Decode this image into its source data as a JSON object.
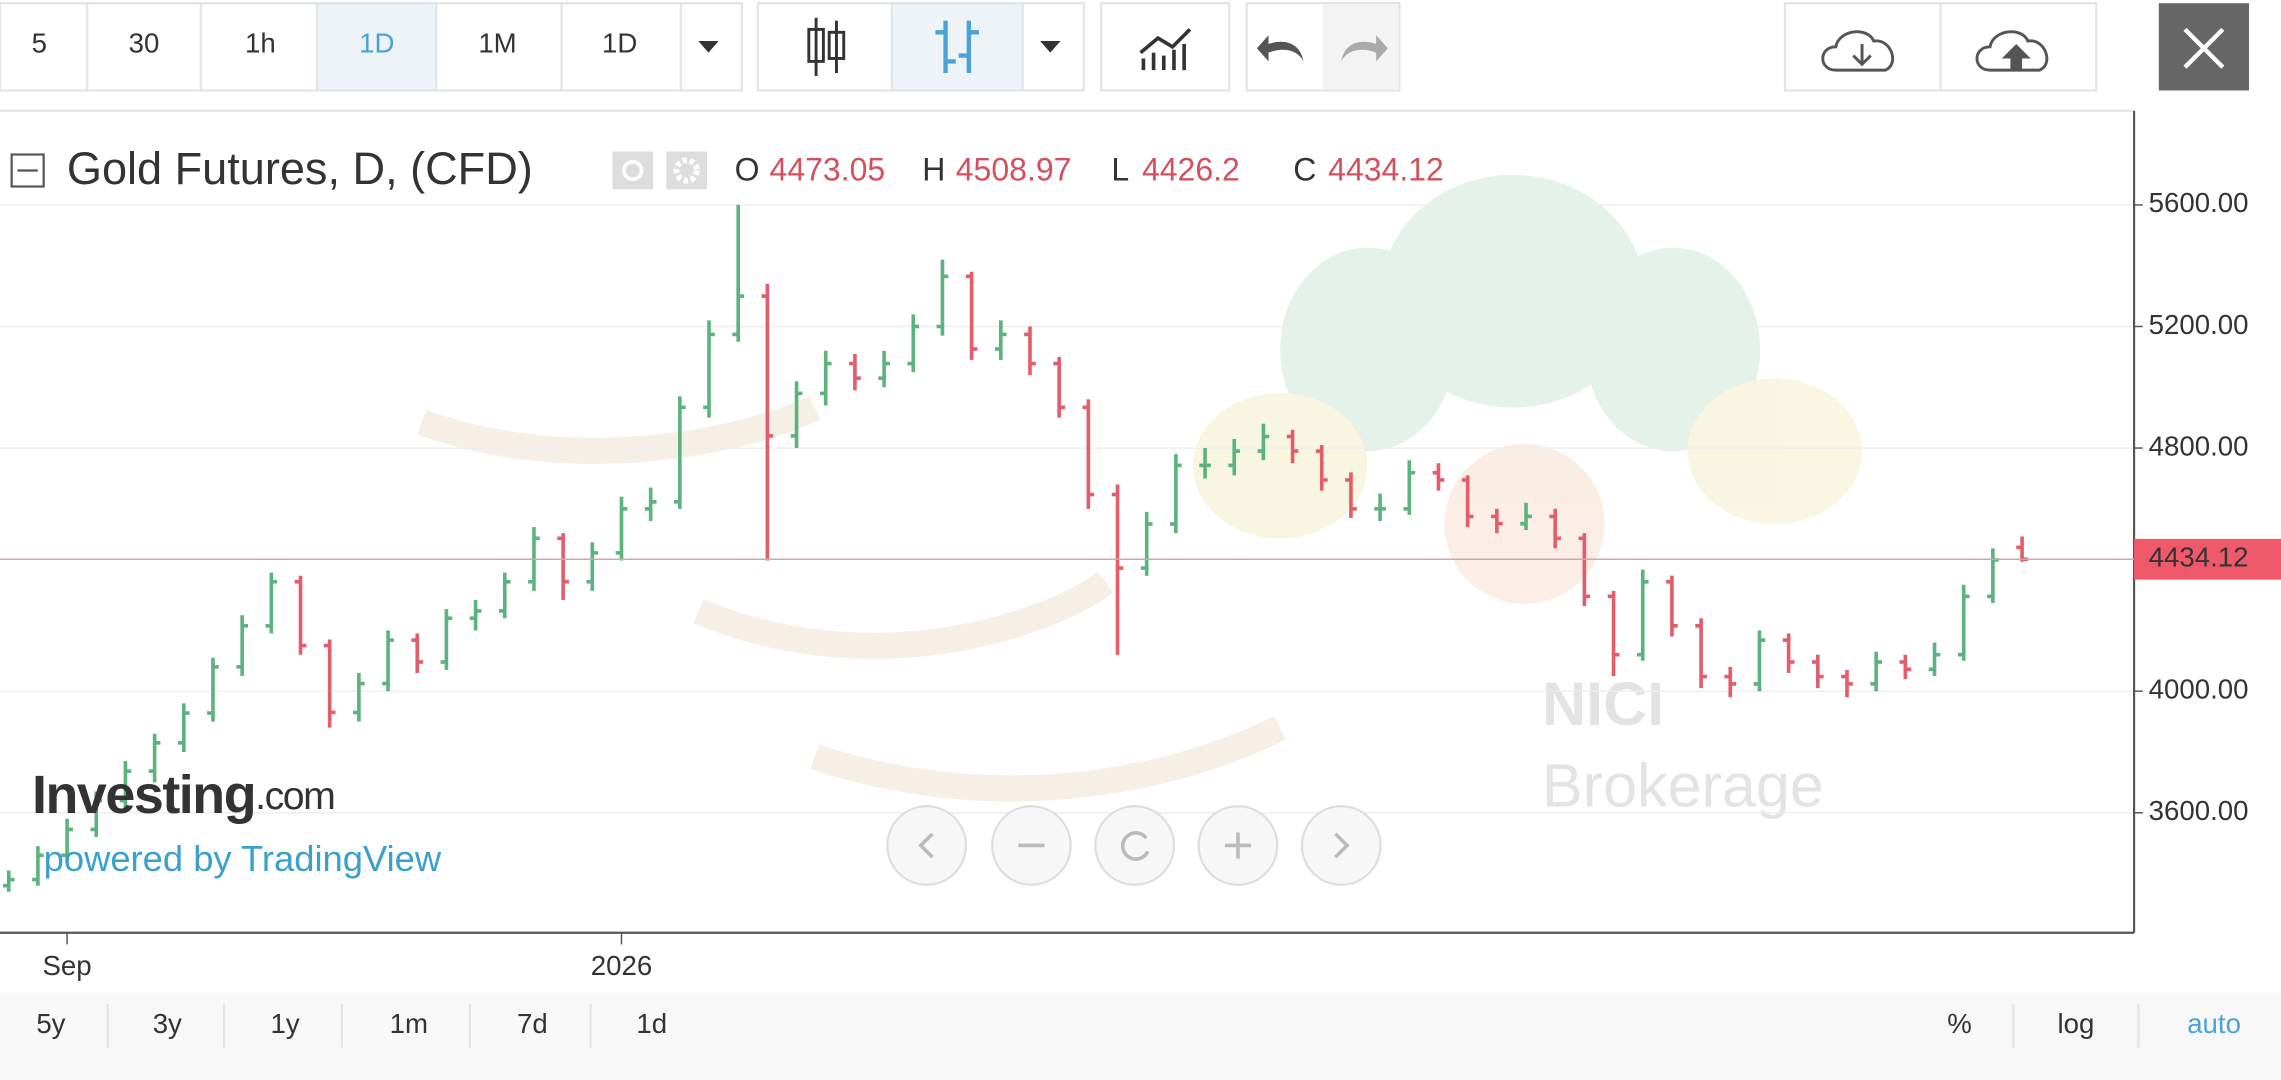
{
  "toolbar": {
    "intervals": [
      "5",
      "30",
      "1h",
      "1D",
      "1M",
      "1D"
    ]
  },
  "legend_labels": [
    "O",
    "H",
    "L",
    "C"
  ],
  "logo": {
    "brand": "Investing",
    "suffix": ".com",
    "powered": "powered by TradingView"
  },
  "watermark": [
    "NICI",
    "Brokerage"
  ],
  "footer": {
    "ranges": [
      "5y",
      "3y",
      "1y",
      "1m",
      "7d",
      "1d"
    ],
    "options": [
      "%",
      "log",
      "auto"
    ]
  },
  "chart_data": {
    "type": "ohlc",
    "title": "Gold Futures, D, (CFD)",
    "categories": [
      null,
      null,
      "Sep",
      null,
      null,
      null,
      null,
      null,
      null,
      null,
      null,
      null,
      null,
      null,
      null,
      null,
      null,
      null,
      null,
      null,
      null,
      "2026",
      null,
      null,
      null,
      null,
      null,
      null,
      null,
      null,
      null,
      null,
      null,
      null,
      null,
      null,
      null,
      null,
      null,
      null,
      null,
      null,
      null,
      null,
      null,
      null,
      null,
      null,
      null,
      null,
      null,
      null,
      null,
      null,
      null,
      null,
      null,
      null,
      null,
      null,
      null,
      null,
      null,
      null,
      null,
      null,
      null,
      null,
      null,
      null
    ],
    "series": [
      {
        "name": "Gold Futures",
        "up_color": "#5db37e",
        "down_color": "#e35d6a",
        "open": [
          3360,
          3380,
          3460,
          3545,
          3640,
          3737,
          3830,
          3928,
          4080,
          4215,
          4360,
          4150,
          3930,
          4025,
          4168,
          4096,
          4240,
          4264,
          4360,
          4503,
          4360,
          4455,
          4600,
          4623,
          4934,
          5174,
          5300,
          4840,
          4980,
          5078,
          5030,
          5078,
          5200,
          5365,
          5126,
          5174,
          5078,
          4934,
          4647,
          4405,
          4550,
          4743,
          4743,
          4790,
          4838,
          4790,
          4695,
          4600,
          4600,
          4719,
          4695,
          4575,
          4551,
          4575,
          4503,
          4312,
          4120,
          4360,
          4215,
          4048,
          4024,
          4168,
          4096,
          4048,
          4024,
          4096,
          4072,
          4120,
          4312,
          4473.05
        ],
        "high": [
          3410,
          3490,
          3580,
          3670,
          3770,
          3860,
          3960,
          4110,
          4250,
          4390,
          4380,
          4170,
          4060,
          4200,
          4190,
          4270,
          4300,
          4390,
          4540,
          4520,
          4490,
          4640,
          4670,
          4970,
          5220,
          5600,
          5340,
          5020,
          5120,
          5110,
          5120,
          5240,
          5420,
          5380,
          5220,
          5200,
          5100,
          4960,
          4680,
          4590,
          4780,
          4800,
          4830,
          4880,
          4860,
          4810,
          4720,
          4650,
          4760,
          4750,
          4710,
          4600,
          4620,
          4600,
          4520,
          4330,
          4400,
          4380,
          4240,
          4080,
          4200,
          4190,
          4120,
          4070,
          4130,
          4120,
          4160,
          4350,
          4470,
          4508.97
        ],
        "low": [
          3340,
          3360,
          3440,
          3520,
          3610,
          3700,
          3800,
          3900,
          4050,
          4190,
          4120,
          3880,
          3900,
          4000,
          4060,
          4070,
          4200,
          4240,
          4330,
          4300,
          4330,
          4430,
          4560,
          4600,
          4900,
          5150,
          4430,
          4800,
          4940,
          4990,
          5000,
          5050,
          5170,
          5090,
          5090,
          5040,
          4900,
          4600,
          4120,
          4380,
          4520,
          4700,
          4710,
          4760,
          4750,
          4660,
          4570,
          4560,
          4580,
          4660,
          4540,
          4520,
          4530,
          4470,
          4280,
          4050,
          4100,
          4180,
          4010,
          3980,
          4000,
          4060,
          4010,
          3980,
          4000,
          4040,
          4050,
          4100,
          4290,
          4426.2
        ],
        "close": [
          3380,
          3460,
          3545,
          3640,
          3737,
          3830,
          3928,
          4080,
          4215,
          4360,
          4150,
          3930,
          4025,
          4168,
          4096,
          4240,
          4264,
          4360,
          4503,
          4360,
          4455,
          4600,
          4623,
          4934,
          5174,
          5300,
          4840,
          4980,
          5078,
          5030,
          5078,
          5200,
          5365,
          5126,
          5174,
          5078,
          4934,
          4647,
          4405,
          4550,
          4743,
          4743,
          4790,
          4838,
          4790,
          4695,
          4600,
          4600,
          4719,
          4695,
          4575,
          4551,
          4575,
          4503,
          4312,
          4120,
          4360,
          4215,
          4048,
          4024,
          4168,
          4096,
          4048,
          4024,
          4096,
          4072,
          4120,
          4312,
          4432,
          4434.12
        ]
      }
    ],
    "ylim": [
      3205,
      5900
    ],
    "yticks": [
      {
        "value": 3600,
        "label": "3600.00"
      },
      {
        "value": 4000,
        "label": "4000.00"
      },
      {
        "value": 4800,
        "label": "4800.00"
      },
      {
        "value": 5200,
        "label": "5200.00"
      },
      {
        "value": 5600,
        "label": "5600.00"
      }
    ],
    "grid": true,
    "last_price_color": "#f0596a"
  }
}
